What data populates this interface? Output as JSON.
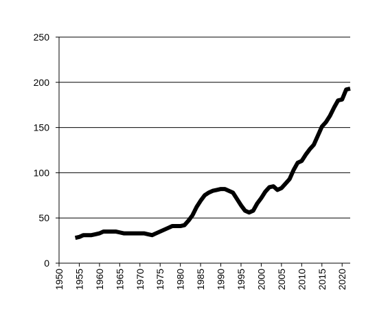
{
  "chart_data": {
    "type": "line",
    "x": [
      1954,
      1955,
      1956,
      1957,
      1958,
      1959,
      1960,
      1961,
      1962,
      1963,
      1964,
      1965,
      1966,
      1967,
      1968,
      1969,
      1970,
      1971,
      1972,
      1973,
      1974,
      1975,
      1976,
      1977,
      1978,
      1979,
      1980,
      1981,
      1982,
      1983,
      1984,
      1985,
      1986,
      1987,
      1988,
      1989,
      1990,
      1991,
      1992,
      1993,
      1994,
      1995,
      1996,
      1997,
      1998,
      1999,
      2000,
      2001,
      2002,
      2003,
      2004,
      2005,
      2006,
      2007,
      2008,
      2009,
      2010,
      2011,
      2012,
      2013,
      2014,
      2015,
      2016,
      2017,
      2018,
      2019,
      2020,
      2021,
      2022
    ],
    "values": [
      28,
      29,
      31,
      31,
      31,
      32,
      33,
      35,
      35,
      35,
      35,
      34,
      33,
      33,
      33,
      33,
      33,
      33,
      32,
      31,
      33,
      35,
      37,
      39,
      41,
      41,
      41,
      42,
      47,
      53,
      62,
      69,
      75,
      78,
      80,
      81,
      82,
      82,
      80,
      78,
      71,
      64,
      58,
      56,
      58,
      66,
      72,
      79,
      84,
      85,
      81,
      83,
      88,
      93,
      103,
      111,
      113,
      120,
      126,
      131,
      141,
      151,
      156,
      163,
      172,
      180,
      181,
      192,
      193
    ],
    "color": "#000000",
    "xlim": [
      1950,
      2022
    ],
    "xticks": [
      1950,
      1955,
      1960,
      1965,
      1970,
      1975,
      1980,
      1985,
      1990,
      1995,
      2000,
      2005,
      2010,
      2015,
      2020
    ],
    "ylim": [
      0,
      250
    ],
    "yticks": [
      0,
      50,
      100,
      150,
      200,
      250
    ],
    "grid": true
  }
}
